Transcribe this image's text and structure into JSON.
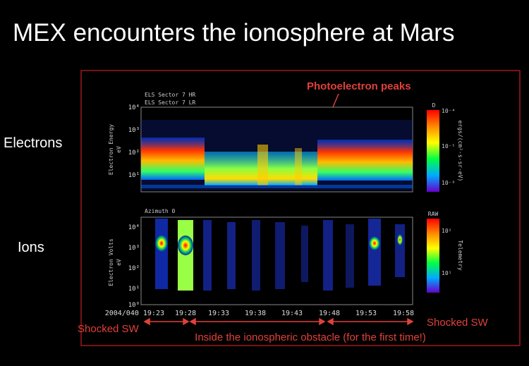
{
  "title": "MEX encounters the ionosphere at Mars",
  "row_labels": [
    "Electrons",
    "Ions"
  ],
  "annotation": "Photoelectron peaks",
  "electron_panel": {
    "headers": [
      "ELS Sector 7 HR",
      "ELS Sector 7 LR"
    ],
    "y_label": [
      "Electron Energy",
      "eV"
    ],
    "y_ticks": [
      "10⁴",
      "10³",
      "10²",
      "10¹"
    ],
    "colorbar_title": "D",
    "colorbar_ticks": [
      "10⁻⁴",
      "10⁻⁵",
      "10⁻⁶"
    ],
    "colorbar_label": "ergs/(cm²-s-sr-eV)"
  },
  "ion_panel": {
    "header": "Azimuth 0",
    "y_label": [
      "Electron Volts",
      "eV"
    ],
    "y_ticks": [
      "10⁴",
      "10³",
      "10²",
      "10¹",
      "10⁰"
    ],
    "colorbar_title": "RAW",
    "colorbar_ticks": [
      "10²",
      "10¹"
    ],
    "colorbar_label": "Telemetry"
  },
  "time_ticks": [
    "2004/040 19:23",
    "19:28",
    "19:33",
    "19:38",
    "19:43",
    "19:48",
    "19:53",
    "19:58"
  ],
  "regions": [
    "Shocked SW",
    "Inside the ionospheric obstacle (for the first time!)",
    "Shocked SW"
  ]
}
